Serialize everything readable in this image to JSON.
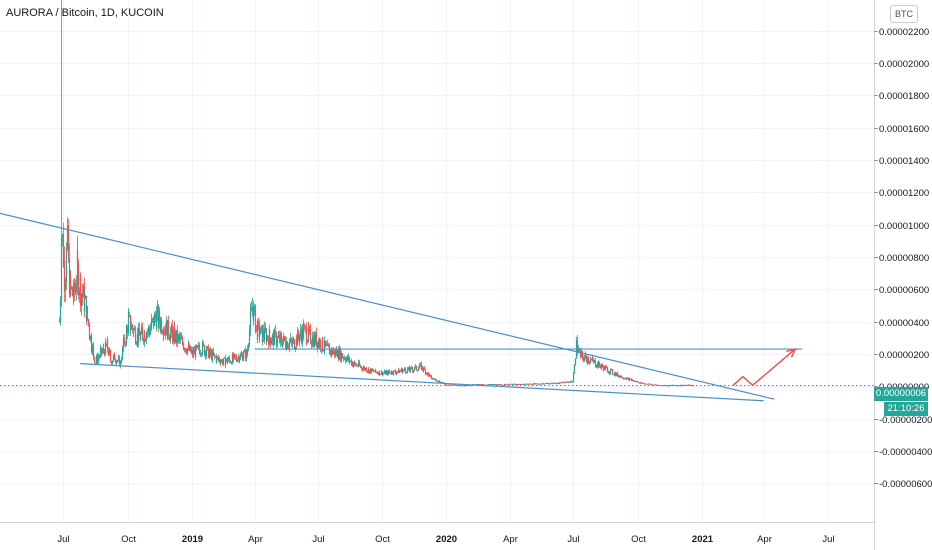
{
  "header": {
    "symbol_title": "AURORA / Bitcoin, 1D, KUCOIN",
    "currency_badge": "BTC"
  },
  "colors": {
    "up": "#26a69a",
    "down": "#ef5350",
    "trendline": "#4a90c8",
    "projection": "#ef5350",
    "grid": "#f0f3fa",
    "axis_text": "#131722",
    "price_label_bg": "#26a69a"
  },
  "last_price_label": "0.00000006",
  "countdown_label": "21:10:26",
  "chart_data": {
    "type": "candlestick",
    "title": "AURORA / Bitcoin, 1D, KUCOIN",
    "x_tick_labels": [
      "Jul",
      "Oct",
      "2019",
      "Apr",
      "Jul",
      "Oct",
      "2020",
      "Apr",
      "Jul",
      "Oct",
      "2021",
      "Apr",
      "Jul"
    ],
    "y_tick_labels": [
      "0.00002200",
      "0.00002000",
      "0.00001800",
      "0.00001600",
      "0.00001400",
      "0.00001200",
      "0.00001000",
      "0.00000800",
      "0.00000600",
      "0.00000400",
      "0.00000200",
      "0.00000000",
      "-0.00000200",
      "-0.00000400",
      "-0.00000600"
    ],
    "y_ticks": [
      2.2e-05,
      2e-05,
      1.8e-05,
      1.6e-05,
      1.4e-05,
      1.2e-05,
      1e-05,
      8e-06,
      6e-06,
      4e-06,
      2e-06,
      0,
      -2e-06,
      -4e-06,
      -6e-06
    ],
    "ylim": [
      -8.4e-06,
      2.39e-05
    ],
    "xlim": [
      "2018-04-01",
      "2021-09-05"
    ],
    "last_price": 6e-08,
    "series": [
      {
        "name": "close",
        "x": [
          "2018-06-25",
          "2018-06-28",
          "2018-07-02",
          "2018-07-06",
          "2018-07-10",
          "2018-07-15",
          "2018-07-20",
          "2018-07-25",
          "2018-08-01",
          "2018-08-08",
          "2018-08-15",
          "2018-08-22",
          "2018-09-01",
          "2018-09-06",
          "2018-09-12",
          "2018-09-20",
          "2018-10-01",
          "2018-10-15",
          "2018-11-01",
          "2018-11-10",
          "2018-11-20",
          "2018-12-01",
          "2018-12-15",
          "2019-01-01",
          "2019-01-15",
          "2019-02-01",
          "2019-02-15",
          "2019-03-01",
          "2019-03-20",
          "2019-03-28",
          "2019-04-03",
          "2019-04-10",
          "2019-04-25",
          "2019-05-10",
          "2019-05-25",
          "2019-06-10",
          "2019-06-20",
          "2019-07-01",
          "2019-07-15",
          "2019-08-01",
          "2019-08-20",
          "2019-09-10",
          "2019-10-01",
          "2019-10-20",
          "2019-11-01",
          "2019-11-10",
          "2019-11-25",
          "2019-12-10",
          "2020-01-01",
          "2020-01-20",
          "2020-02-10",
          "2020-03-10",
          "2020-04-10",
          "2020-05-10",
          "2020-06-10",
          "2020-06-30",
          "2020-07-05",
          "2020-07-10",
          "2020-07-25",
          "2020-08-10",
          "2020-09-01",
          "2020-09-20",
          "2020-10-05",
          "2020-10-25",
          "2020-11-15",
          "2020-12-01",
          "2020-12-20"
        ],
        "values": [
          4e-06,
          9.5e-06,
          7e-06,
          8.5e-06,
          6e-06,
          5.5e-06,
          7.2e-06,
          6e-06,
          5e-06,
          3e-06,
          1.5e-06,
          2e-06,
          2.5e-06,
          1.6e-06,
          1.8e-06,
          1.4e-06,
          4e-06,
          3e-06,
          3.5e-06,
          4.3e-06,
          3.8e-06,
          3.3e-06,
          2.8e-06,
          2e-06,
          2.4e-06,
          1.8e-06,
          1.5e-06,
          1.7e-06,
          2e-06,
          5e-06,
          3.5e-06,
          3.2e-06,
          3e-06,
          2.8e-06,
          2.6e-06,
          3.4e-06,
          3e-06,
          2.8e-06,
          2.2e-06,
          2e-06,
          1.4e-06,
          1e-06,
          8e-07,
          9e-07,
          1e-06,
          1e-06,
          1.2e-06,
          5e-07,
          1e-07,
          5e-08,
          1e-07,
          1e-07,
          1.2e-07,
          1.5e-07,
          2e-07,
          3e-07,
          2.5e-06,
          1.9e-06,
          1.6e-06,
          1.2e-06,
          7e-07,
          4e-07,
          2e-07,
          8e-08,
          5e-08,
          6e-08,
          6e-08
        ]
      }
    ],
    "annotations": [
      {
        "type": "trendline",
        "name": "descending-resistance",
        "x": [
          "2018-04-01",
          "2021-04-15"
        ],
        "y": [
          1.07e-05,
          -8e-07
        ]
      },
      {
        "type": "trendline",
        "name": "support-line",
        "x": [
          "2018-07-25",
          "2021-03-31"
        ],
        "y": [
          1.4e-06,
          -9e-07
        ]
      },
      {
        "type": "horizontal",
        "name": "resistance-level",
        "x": [
          "2019-04-01",
          "2021-05-25"
        ],
        "y": 2.3e-06
      },
      {
        "type": "projection",
        "name": "breakout-projection-arrow",
        "x": [
          "2021-02-15",
          "2021-03-01",
          "2021-03-15",
          "2021-05-15"
        ],
        "y": [
          6e-08,
          6e-07,
          6e-08,
          2.3e-06
        ]
      }
    ]
  }
}
